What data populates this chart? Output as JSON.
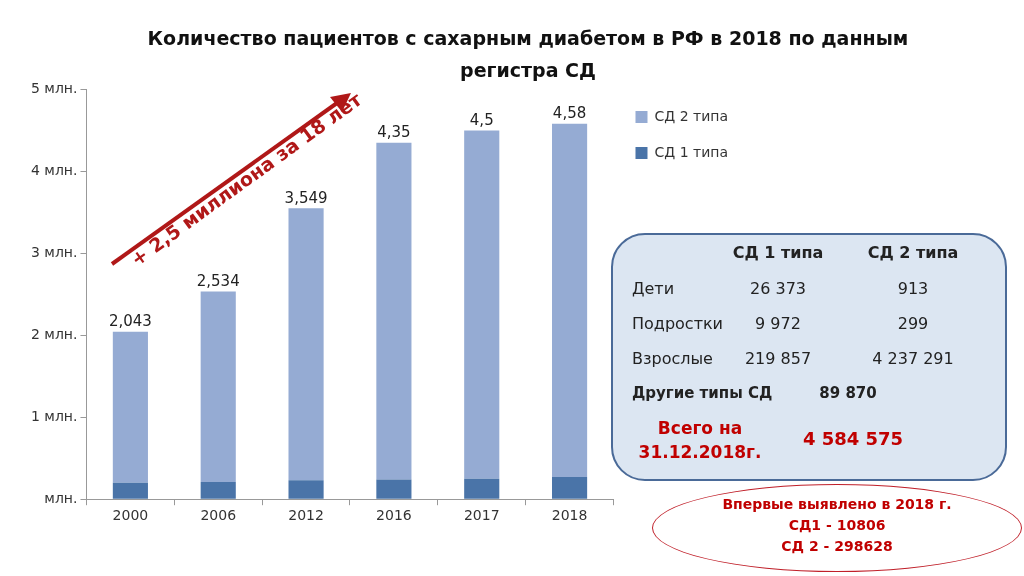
{
  "chart_data": [
    {
      "type": "bar",
      "title": "Количество пациентов с сахарным диабетом в РФ в 2018 по данным регистра СД",
      "categories": [
        "2000",
        "2006",
        "2012",
        "2016",
        "2017",
        "2018"
      ],
      "series": [
        {
          "name": "СД 1 типа",
          "color": "#4a74a8",
          "values": [
            0.2,
            0.21,
            0.23,
            0.24,
            0.25,
            0.27
          ]
        },
        {
          "name": "СД 2 типа",
          "color": "#95abd3",
          "values": [
            1.843,
            2.324,
            3.319,
            4.11,
            4.25,
            4.31
          ]
        }
      ],
      "stacked": true,
      "ylim": [
        0,
        5
      ],
      "yticks": [
        {
          "value": 0,
          "label": "млн."
        },
        {
          "value": 1,
          "label": "1 млн."
        },
        {
          "value": 2,
          "label": "2 млн."
        },
        {
          "value": 3,
          "label": "3 млн."
        },
        {
          "value": 4,
          "label": "4 млн."
        },
        {
          "value": 5,
          "label": "5 млн."
        }
      ],
      "totals": [
        "2,043",
        "2,534",
        "3,549",
        "4,35",
        "4,5",
        "4,58"
      ],
      "legend": "right",
      "annotations": [
        "+ 2,5 миллиона за 18 лет"
      ]
    },
    {
      "type": "other",
      "annotations": [
        "СД 1 типа",
        "СД 2 типа",
        "Дети",
        "26 373",
        "913",
        "Подростки",
        "9 972",
        "299",
        "Взрослые",
        "219 857",
        "4 237 291",
        "Другие типы СД",
        "89 870",
        "Всего на 31.12.2018г.",
        "4 584 575",
        "Впервые выявлено в 2018 г.",
        "СД1 - 10806",
        "СД 2 - 298628"
      ]
    }
  ]
}
